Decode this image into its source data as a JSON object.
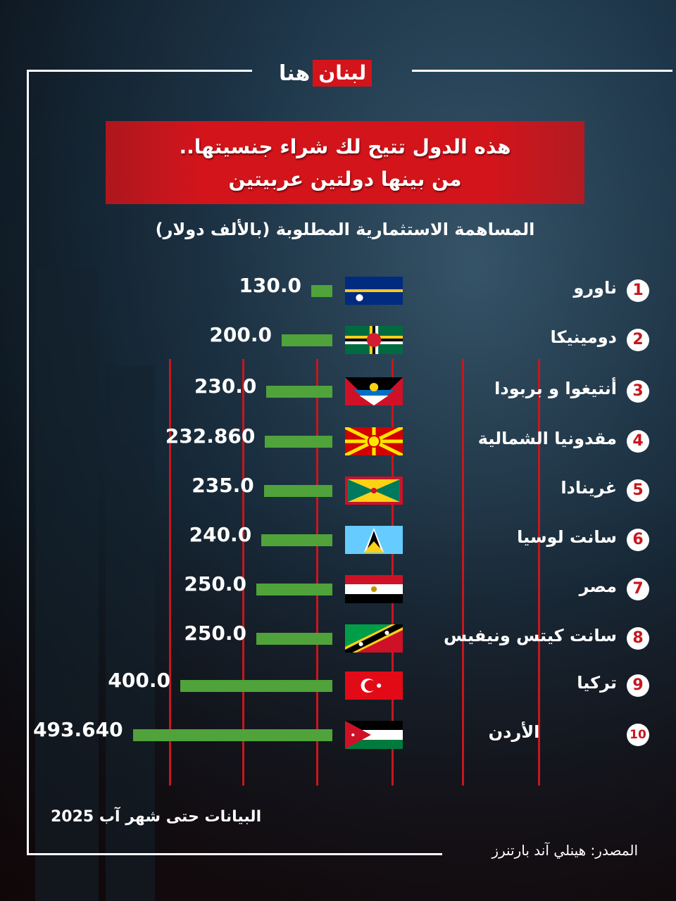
{
  "brand": {
    "logo_part1": "هنا",
    "logo_part2": "لبنان",
    "red": "#d3141b"
  },
  "title": {
    "line1": "هذه الدول تتيح لك شراء جنسيتها..",
    "line2": "من بينها دولتين عربيتين"
  },
  "chart_data": {
    "type": "bar",
    "title": "المساهمة الاستثمارية المطلوبة (بالألف دولار)",
    "orientation": "horizontal",
    "categories": [
      "ناورو",
      "دومينيكا",
      "أنتيغوا و بربودا",
      "مقدونيا الشمالية",
      "غرينادا",
      "سانت لوسيا",
      "مصر",
      "سانت كيتس ونيفيس",
      "تركيا",
      "الأردن"
    ],
    "ranks": [
      "1",
      "2",
      "3",
      "4",
      "5",
      "6",
      "7",
      "8",
      "9",
      "10"
    ],
    "values": [
      130.0,
      200.0,
      230.0,
      232.86,
      235.0,
      240.0,
      250.0,
      250.0,
      400.0,
      493.64
    ],
    "value_labels": [
      "130.0",
      "200.0",
      "230.0",
      "232.860",
      "235.0",
      "240.0",
      "250.0",
      "250.0",
      "400.0",
      "493.640"
    ],
    "flags": [
      "nauru-flag",
      "dominica-flag",
      "antigua-barbuda-flag",
      "north-macedonia-flag",
      "grenada-flag",
      "saint-lucia-flag",
      "egypt-flag",
      "saint-kitts-nevis-flag",
      "turkey-flag",
      "jordan-flag"
    ],
    "bar_color": "#4fa33a"
  },
  "footer": {
    "note": "البيانات حتى شهر آب 2025",
    "source": "المصدر:  هينلي آند بارتنرز"
  }
}
